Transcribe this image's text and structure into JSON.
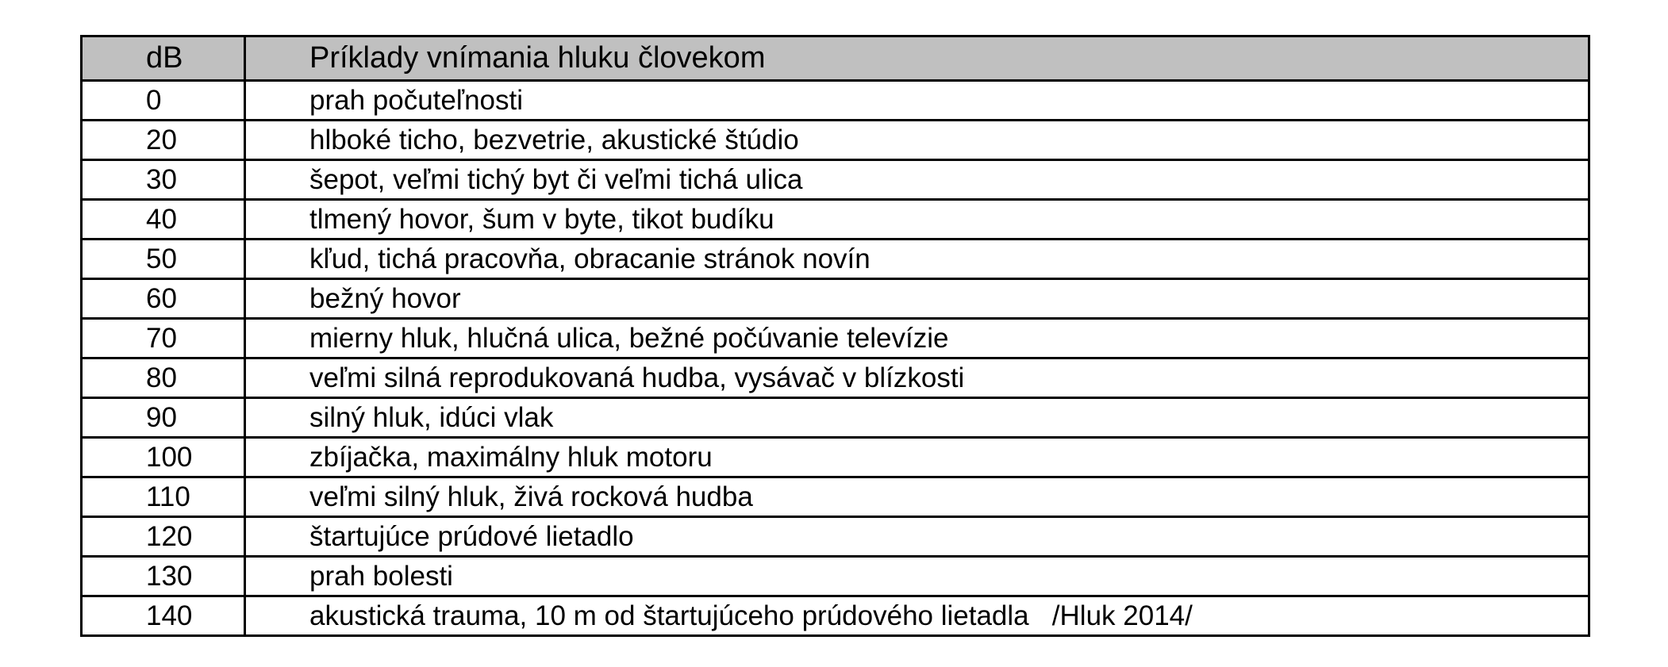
{
  "table": {
    "headers": [
      "dB",
      "Príklady vnímania hluku človekom"
    ],
    "header_background": "#c0c0c0",
    "rows": [
      {
        "db": "0",
        "desc": "prah počuteľnosti"
      },
      {
        "db": "20",
        "desc": "hlboké ticho, bezvetrie, akustické štúdio"
      },
      {
        "db": "30",
        "desc": "šepot, veľmi tichý byt či veľmi tichá ulica"
      },
      {
        "db": "40",
        "desc": "tlmený hovor, šum v byte, tikot budíku"
      },
      {
        "db": "50",
        "desc": "kľud, tichá pracovňa, obracanie stránok novín"
      },
      {
        "db": "60",
        "desc": "bežný hovor"
      },
      {
        "db": "70",
        "desc": "mierny hluk, hlučná ulica, bežné počúvanie televízie"
      },
      {
        "db": "80",
        "desc": "veľmi silná reprodukovaná hudba, vysávač v blízkosti"
      },
      {
        "db": "90",
        "desc": "silný hluk, idúci vlak"
      },
      {
        "db": "100",
        "desc": "zbíjačka, maximálny hluk motoru"
      },
      {
        "db": "110",
        "desc": "veľmi silný hluk, živá rocková hudba"
      },
      {
        "db": "120",
        "desc": "štartujúce prúdové lietadlo"
      },
      {
        "db": "130",
        "desc": "prah bolesti"
      },
      {
        "db": "140",
        "desc": "akustická trauma, 10 m od štartujúceho prúdového lietadla   /Hluk 2014/"
      }
    ]
  }
}
